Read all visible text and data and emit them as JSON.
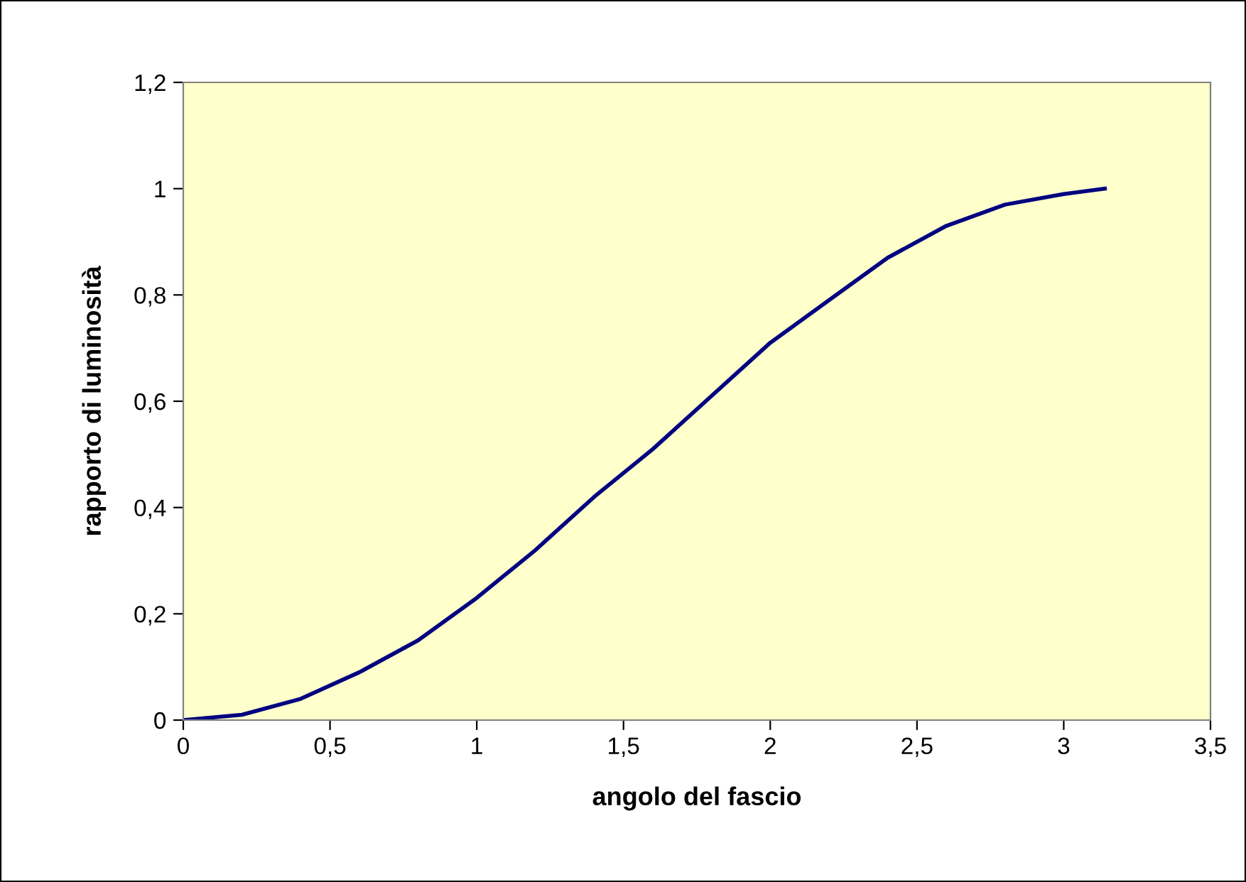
{
  "chart_data": {
    "type": "line",
    "xlabel": "angolo del fascio",
    "ylabel": "rapporto di luminosità",
    "x": [
      0,
      0.2,
      0.4,
      0.6,
      0.8,
      1.0,
      1.2,
      1.4,
      1.6,
      1.8,
      2.0,
      2.2,
      2.4,
      2.6,
      2.8,
      3.0,
      3.14
    ],
    "series": [
      {
        "color": "#000080",
        "values": [
          0,
          0.01,
          0.04,
          0.09,
          0.15,
          0.23,
          0.32,
          0.42,
          0.51,
          0.61,
          0.71,
          0.79,
          0.87,
          0.93,
          0.97,
          0.99,
          1.0
        ]
      }
    ],
    "xlim": [
      0,
      3.5
    ],
    "ylim": [
      0,
      1.2
    ],
    "xticks": [
      0,
      {
        "value": 0.5,
        "label": "0,5"
      },
      1,
      {
        "value": 1.5,
        "label": "1,5"
      },
      2,
      {
        "value": 2.5,
        "label": "2,5"
      },
      3,
      {
        "value": 3.5,
        "label": "3,5"
      }
    ],
    "yticks": [
      0,
      {
        "value": 0.2,
        "label": "0,2"
      },
      {
        "value": 0.4,
        "label": "0,4"
      },
      {
        "value": 0.6,
        "label": "0,6"
      },
      {
        "value": 0.8,
        "label": "0,8"
      },
      1,
      {
        "value": 1.2,
        "label": "1,2"
      }
    ],
    "grid": false,
    "legend": false,
    "marker": "none",
    "line_style": "solid"
  }
}
